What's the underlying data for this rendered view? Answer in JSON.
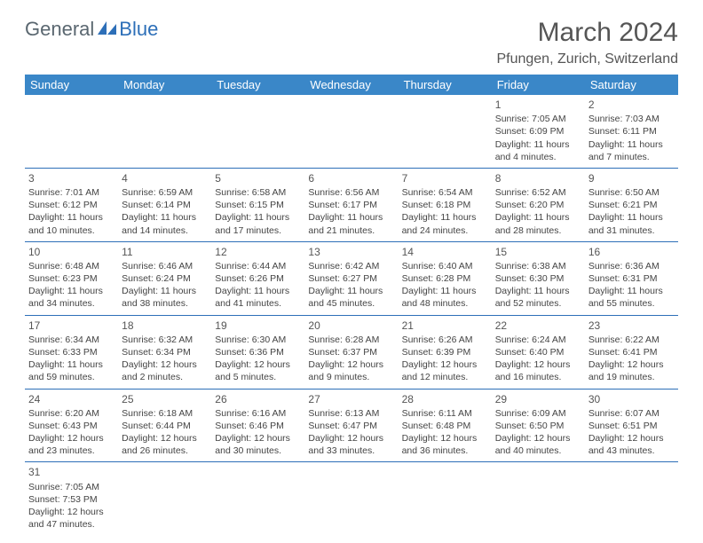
{
  "logo": {
    "general": "General",
    "blue": "Blue"
  },
  "title": "March 2024",
  "location": "Pfungen, Zurich, Switzerland",
  "colors": {
    "header_bg": "#3a87c8",
    "header_text": "#ffffff",
    "border": "#2d6fb8",
    "text": "#444444",
    "title_text": "#555555",
    "logo_general": "#5a6770",
    "logo_blue": "#2d6fb8"
  },
  "days": [
    "Sunday",
    "Monday",
    "Tuesday",
    "Wednesday",
    "Thursday",
    "Friday",
    "Saturday"
  ],
  "weeks": [
    [
      null,
      null,
      null,
      null,
      null,
      {
        "n": "1",
        "sr": "Sunrise: 7:05 AM",
        "ss": "Sunset: 6:09 PM",
        "dl1": "Daylight: 11 hours",
        "dl2": "and 4 minutes."
      },
      {
        "n": "2",
        "sr": "Sunrise: 7:03 AM",
        "ss": "Sunset: 6:11 PM",
        "dl1": "Daylight: 11 hours",
        "dl2": "and 7 minutes."
      }
    ],
    [
      {
        "n": "3",
        "sr": "Sunrise: 7:01 AM",
        "ss": "Sunset: 6:12 PM",
        "dl1": "Daylight: 11 hours",
        "dl2": "and 10 minutes."
      },
      {
        "n": "4",
        "sr": "Sunrise: 6:59 AM",
        "ss": "Sunset: 6:14 PM",
        "dl1": "Daylight: 11 hours",
        "dl2": "and 14 minutes."
      },
      {
        "n": "5",
        "sr": "Sunrise: 6:58 AM",
        "ss": "Sunset: 6:15 PM",
        "dl1": "Daylight: 11 hours",
        "dl2": "and 17 minutes."
      },
      {
        "n": "6",
        "sr": "Sunrise: 6:56 AM",
        "ss": "Sunset: 6:17 PM",
        "dl1": "Daylight: 11 hours",
        "dl2": "and 21 minutes."
      },
      {
        "n": "7",
        "sr": "Sunrise: 6:54 AM",
        "ss": "Sunset: 6:18 PM",
        "dl1": "Daylight: 11 hours",
        "dl2": "and 24 minutes."
      },
      {
        "n": "8",
        "sr": "Sunrise: 6:52 AM",
        "ss": "Sunset: 6:20 PM",
        "dl1": "Daylight: 11 hours",
        "dl2": "and 28 minutes."
      },
      {
        "n": "9",
        "sr": "Sunrise: 6:50 AM",
        "ss": "Sunset: 6:21 PM",
        "dl1": "Daylight: 11 hours",
        "dl2": "and 31 minutes."
      }
    ],
    [
      {
        "n": "10",
        "sr": "Sunrise: 6:48 AM",
        "ss": "Sunset: 6:23 PM",
        "dl1": "Daylight: 11 hours",
        "dl2": "and 34 minutes."
      },
      {
        "n": "11",
        "sr": "Sunrise: 6:46 AM",
        "ss": "Sunset: 6:24 PM",
        "dl1": "Daylight: 11 hours",
        "dl2": "and 38 minutes."
      },
      {
        "n": "12",
        "sr": "Sunrise: 6:44 AM",
        "ss": "Sunset: 6:26 PM",
        "dl1": "Daylight: 11 hours",
        "dl2": "and 41 minutes."
      },
      {
        "n": "13",
        "sr": "Sunrise: 6:42 AM",
        "ss": "Sunset: 6:27 PM",
        "dl1": "Daylight: 11 hours",
        "dl2": "and 45 minutes."
      },
      {
        "n": "14",
        "sr": "Sunrise: 6:40 AM",
        "ss": "Sunset: 6:28 PM",
        "dl1": "Daylight: 11 hours",
        "dl2": "and 48 minutes."
      },
      {
        "n": "15",
        "sr": "Sunrise: 6:38 AM",
        "ss": "Sunset: 6:30 PM",
        "dl1": "Daylight: 11 hours",
        "dl2": "and 52 minutes."
      },
      {
        "n": "16",
        "sr": "Sunrise: 6:36 AM",
        "ss": "Sunset: 6:31 PM",
        "dl1": "Daylight: 11 hours",
        "dl2": "and 55 minutes."
      }
    ],
    [
      {
        "n": "17",
        "sr": "Sunrise: 6:34 AM",
        "ss": "Sunset: 6:33 PM",
        "dl1": "Daylight: 11 hours",
        "dl2": "and 59 minutes."
      },
      {
        "n": "18",
        "sr": "Sunrise: 6:32 AM",
        "ss": "Sunset: 6:34 PM",
        "dl1": "Daylight: 12 hours",
        "dl2": "and 2 minutes."
      },
      {
        "n": "19",
        "sr": "Sunrise: 6:30 AM",
        "ss": "Sunset: 6:36 PM",
        "dl1": "Daylight: 12 hours",
        "dl2": "and 5 minutes."
      },
      {
        "n": "20",
        "sr": "Sunrise: 6:28 AM",
        "ss": "Sunset: 6:37 PM",
        "dl1": "Daylight: 12 hours",
        "dl2": "and 9 minutes."
      },
      {
        "n": "21",
        "sr": "Sunrise: 6:26 AM",
        "ss": "Sunset: 6:39 PM",
        "dl1": "Daylight: 12 hours",
        "dl2": "and 12 minutes."
      },
      {
        "n": "22",
        "sr": "Sunrise: 6:24 AM",
        "ss": "Sunset: 6:40 PM",
        "dl1": "Daylight: 12 hours",
        "dl2": "and 16 minutes."
      },
      {
        "n": "23",
        "sr": "Sunrise: 6:22 AM",
        "ss": "Sunset: 6:41 PM",
        "dl1": "Daylight: 12 hours",
        "dl2": "and 19 minutes."
      }
    ],
    [
      {
        "n": "24",
        "sr": "Sunrise: 6:20 AM",
        "ss": "Sunset: 6:43 PM",
        "dl1": "Daylight: 12 hours",
        "dl2": "and 23 minutes."
      },
      {
        "n": "25",
        "sr": "Sunrise: 6:18 AM",
        "ss": "Sunset: 6:44 PM",
        "dl1": "Daylight: 12 hours",
        "dl2": "and 26 minutes."
      },
      {
        "n": "26",
        "sr": "Sunrise: 6:16 AM",
        "ss": "Sunset: 6:46 PM",
        "dl1": "Daylight: 12 hours",
        "dl2": "and 30 minutes."
      },
      {
        "n": "27",
        "sr": "Sunrise: 6:13 AM",
        "ss": "Sunset: 6:47 PM",
        "dl1": "Daylight: 12 hours",
        "dl2": "and 33 minutes."
      },
      {
        "n": "28",
        "sr": "Sunrise: 6:11 AM",
        "ss": "Sunset: 6:48 PM",
        "dl1": "Daylight: 12 hours",
        "dl2": "and 36 minutes."
      },
      {
        "n": "29",
        "sr": "Sunrise: 6:09 AM",
        "ss": "Sunset: 6:50 PM",
        "dl1": "Daylight: 12 hours",
        "dl2": "and 40 minutes."
      },
      {
        "n": "30",
        "sr": "Sunrise: 6:07 AM",
        "ss": "Sunset: 6:51 PM",
        "dl1": "Daylight: 12 hours",
        "dl2": "and 43 minutes."
      }
    ],
    [
      {
        "n": "31",
        "sr": "Sunrise: 7:05 AM",
        "ss": "Sunset: 7:53 PM",
        "dl1": "Daylight: 12 hours",
        "dl2": "and 47 minutes."
      },
      null,
      null,
      null,
      null,
      null,
      null
    ]
  ]
}
